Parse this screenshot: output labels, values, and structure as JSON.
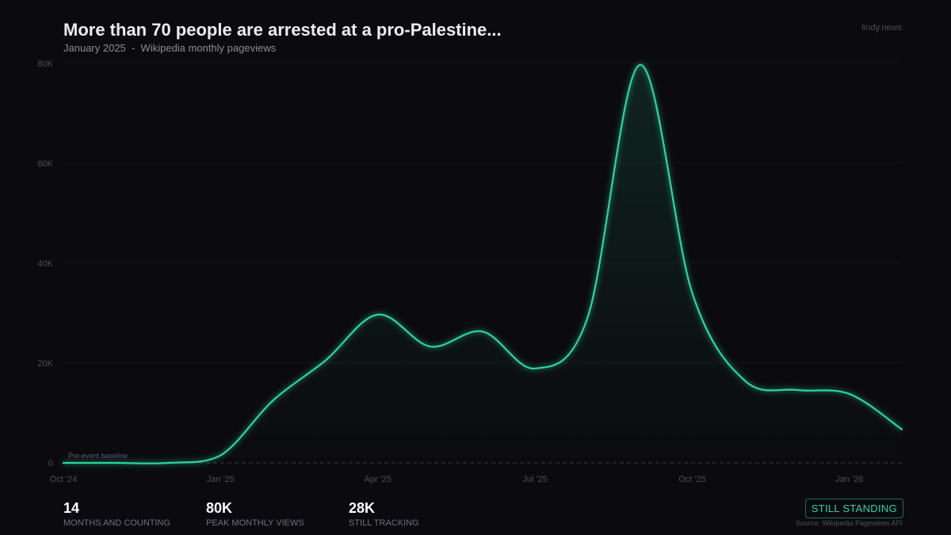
{
  "header": {
    "title": "More than 70 people are arrested at a pro-Palestine...",
    "subtitle": "January 2025  -  Wikipedia monthly pageviews",
    "brand": "lindy.news"
  },
  "chart_data": {
    "type": "area",
    "title": "More than 70 people are arrested at a pro-Palestine...",
    "xlabel": "",
    "ylabel": "",
    "ylim": [
      0,
      80000
    ],
    "yticks": [
      0,
      20000,
      40000,
      60000,
      80000
    ],
    "ytick_labels": [
      "0",
      "20K",
      "40K",
      "60K",
      "80K"
    ],
    "xtick_labels": [
      "Oct '24",
      "Jan '25",
      "Apr '25",
      "Jul '25",
      "Oct '25",
      "Jan '26"
    ],
    "x": [
      "2024-10",
      "2024-11",
      "2024-12",
      "2025-01",
      "2025-02",
      "2025-03",
      "2025-04",
      "2025-05",
      "2025-06",
      "2025-07",
      "2025-08",
      "2025-09",
      "2025-10",
      "2025-11",
      "2025-12",
      "2026-01",
      "2026-02"
    ],
    "values": [
      0,
      0,
      0,
      1500,
      12500,
      20500,
      29700,
      23300,
      26300,
      18900,
      29000,
      79700,
      34000,
      16500,
      14600,
      13800,
      6700
    ],
    "baseline": {
      "label": "Pre-event baseline",
      "value": 0
    },
    "grid": true,
    "color": "#2fd3a0"
  },
  "stats": [
    {
      "value": "14",
      "label": "MONTHS AND COUNTING"
    },
    {
      "value": "80K",
      "label": "PEAK MONTHLY VIEWS"
    },
    {
      "value": "28K",
      "label": "STILL TRACKING"
    }
  ],
  "badge": "STILL STANDING",
  "source": "Source: Wikipedia Pageviews API"
}
